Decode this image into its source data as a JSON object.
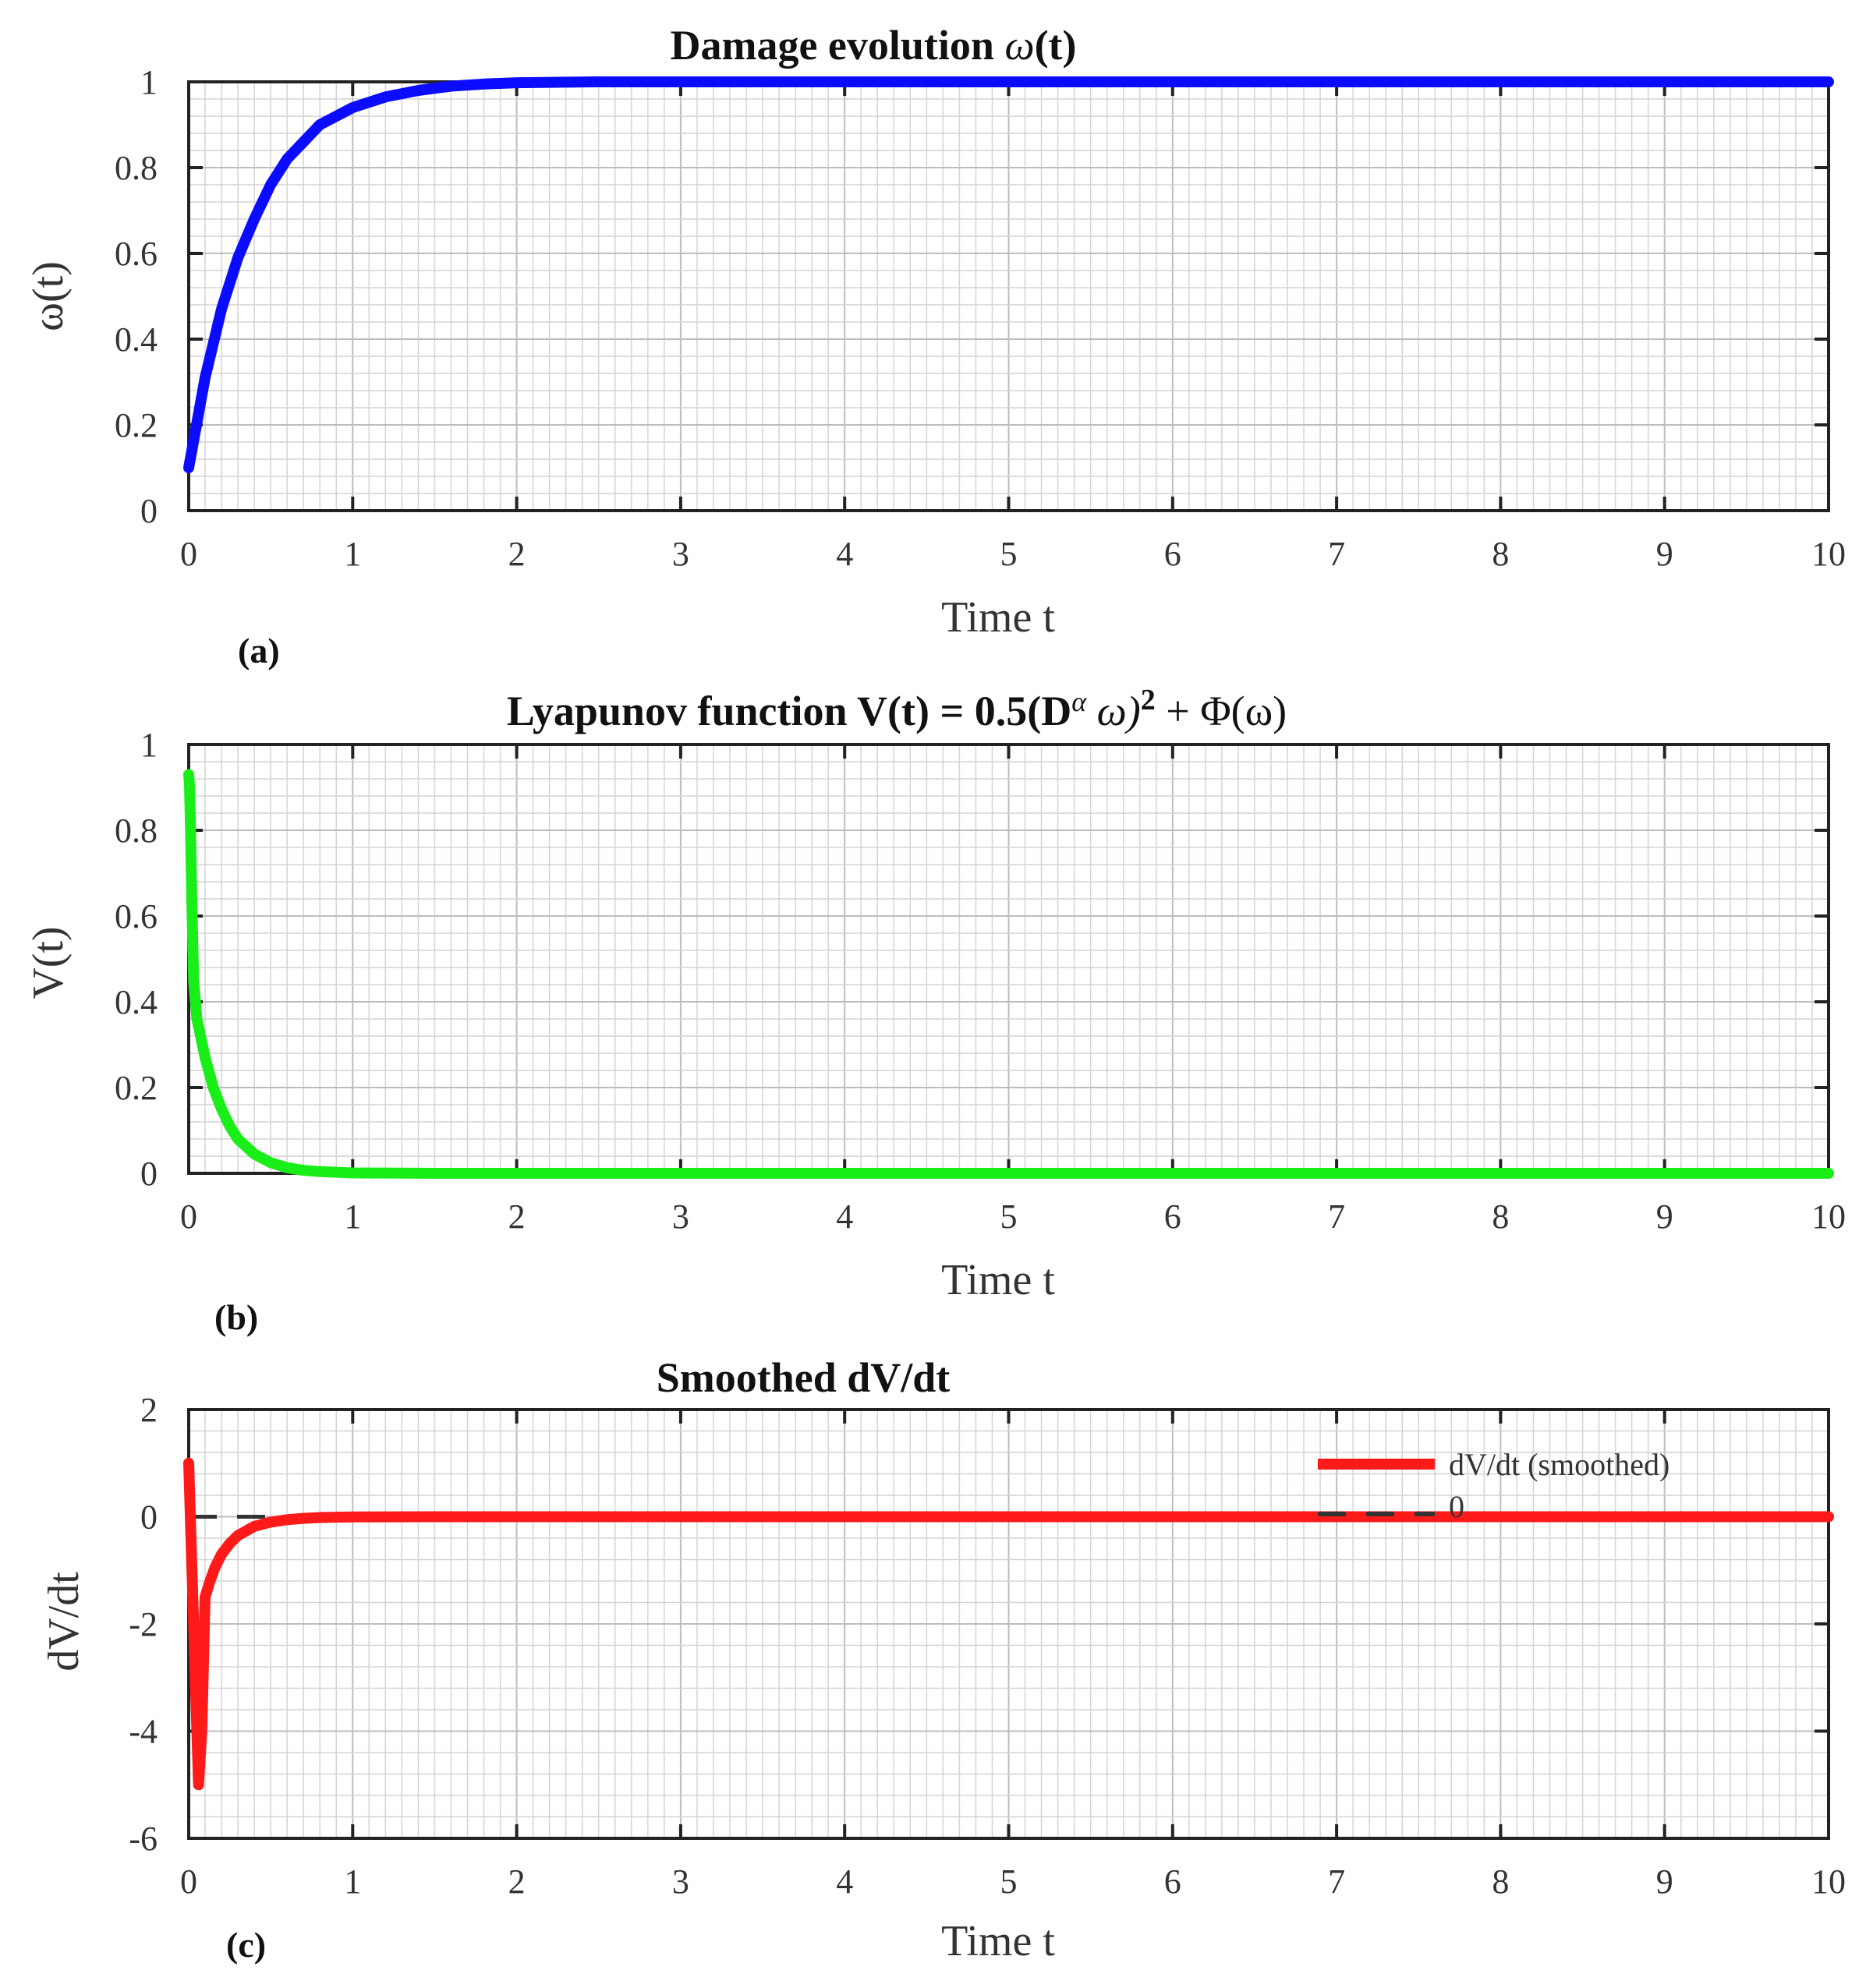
{
  "colors": {
    "series_omega": "#0b0bff",
    "series_V": "#19ee19",
    "series_dVdt": "#ff1a1a",
    "zero_line": "#333333",
    "grid_minor": "#d4d4d4",
    "grid_major": "#bdbdbd",
    "axes": "#222222"
  },
  "panels": [
    {
      "id": "a",
      "panel_label": "(a)",
      "title_text": "Damage evolution ",
      "title_symbol": "ω",
      "title_suffix": "(t)",
      "xlabel": "Time t",
      "ylabel": "ω(t)",
      "xticks": [
        "0",
        "1",
        "2",
        "3",
        "4",
        "5",
        "6",
        "7",
        "8",
        "9",
        "10"
      ],
      "yticks": [
        "0",
        "0.2",
        "0.4",
        "0.6",
        "0.8",
        "1"
      ]
    },
    {
      "id": "b",
      "panel_label": "(b)",
      "title_text": "Lyapunov function V(t) = 0.5(D",
      "title_sup_alpha": "α",
      "title_mid": " ω)",
      "title_sup_2": "2",
      "title_end": " + Φ(ω)",
      "xlabel": "Time t",
      "ylabel": "V(t)",
      "xticks": [
        "0",
        "1",
        "2",
        "3",
        "4",
        "5",
        "6",
        "7",
        "8",
        "9",
        "10"
      ],
      "yticks": [
        "0",
        "0.2",
        "0.4",
        "0.6",
        "0.8",
        "1"
      ]
    },
    {
      "id": "c",
      "panel_label": "(c)",
      "title_text": "Smoothed dV/dt",
      "xlabel": "Time t",
      "ylabel": "dV/dt",
      "xticks": [
        "0",
        "1",
        "2",
        "3",
        "4",
        "5",
        "6",
        "7",
        "8",
        "9",
        "10"
      ],
      "yticks": [
        "-6",
        "-4",
        "-2",
        "0",
        "2"
      ],
      "legend": [
        {
          "label": "dV/dt (smoothed)",
          "style": "solid"
        },
        {
          "label": "0",
          "style": "dashed"
        }
      ]
    }
  ],
  "chart_data": [
    {
      "type": "line",
      "title": "Damage evolution ω(t)",
      "xlabel": "Time t",
      "ylabel": "ω(t)",
      "xlim": [
        0,
        10
      ],
      "ylim": [
        0,
        1
      ],
      "grid": "on",
      "series": [
        {
          "x": [
            0,
            0.1,
            0.2,
            0.3,
            0.4,
            0.5,
            0.6,
            0.7,
            0.8,
            0.9,
            1.0,
            1.2,
            1.4,
            1.6,
            1.8,
            2.0,
            2.5,
            3.0,
            4.0,
            5.0,
            6.0,
            7.0,
            8.0,
            9.0,
            10.0
          ],
          "values": [
            0.1,
            0.31,
            0.47,
            0.59,
            0.68,
            0.76,
            0.82,
            0.86,
            0.9,
            0.92,
            0.94,
            0.965,
            0.98,
            0.99,
            0.995,
            0.998,
            1.0,
            1.0,
            1.0,
            1.0,
            1.0,
            1.0,
            1.0,
            1.0,
            1.0
          ]
        }
      ]
    },
    {
      "type": "line",
      "title": "Lyapunov function V(t) = 0.5(Dα ω)2 + Φ(ω)",
      "xlabel": "Time t",
      "ylabel": "V(t)",
      "xlim": [
        0,
        10
      ],
      "ylim": [
        0,
        1
      ],
      "grid": "on",
      "series": [
        {
          "x": [
            0.0,
            0.005,
            0.01,
            0.02,
            0.03,
            0.05,
            0.1,
            0.15,
            0.2,
            0.25,
            0.3,
            0.4,
            0.5,
            0.6,
            0.7,
            0.8,
            1.0,
            1.5,
            2.0,
            3.0,
            4.0,
            5.0,
            6.0,
            7.0,
            8.0,
            9.0,
            10.0
          ],
          "values": [
            0.93,
            0.9,
            0.82,
            0.62,
            0.45,
            0.36,
            0.27,
            0.2,
            0.15,
            0.11,
            0.08,
            0.045,
            0.025,
            0.013,
            0.007,
            0.004,
            0.001,
            0.0,
            0.0,
            0.0,
            0.0,
            0.0,
            0.0,
            0.0,
            0.0,
            0.0,
            0.0
          ]
        }
      ]
    },
    {
      "type": "line",
      "title": "Smoothed dV/dt",
      "xlabel": "Time t",
      "ylabel": "dV/dt",
      "xlim": [
        0,
        10
      ],
      "ylim": [
        -6,
        2
      ],
      "grid": "on",
      "legend": "top-right",
      "series": [
        {
          "name": "dV/dt (smoothed)",
          "x": [
            0.0,
            0.03,
            0.06,
            0.08,
            0.1,
            0.13,
            0.16,
            0.2,
            0.25,
            0.3,
            0.4,
            0.5,
            0.6,
            0.7,
            0.8,
            1.0,
            1.5,
            2.0,
            3.0,
            4.0,
            5.0,
            6.0,
            7.0,
            8.0,
            9.0,
            10.0
          ],
          "values": [
            1.0,
            -2.0,
            -5.0,
            -4.0,
            -1.5,
            -1.2,
            -0.95,
            -0.7,
            -0.5,
            -0.35,
            -0.18,
            -0.1,
            -0.055,
            -0.03,
            -0.015,
            -0.005,
            0.0,
            0.0,
            0.0,
            0.0,
            0.0,
            0.0,
            0.0,
            0.0,
            0.0,
            0.0
          ]
        },
        {
          "name": "0",
          "x": [
            0,
            10
          ],
          "values": [
            0,
            0
          ]
        }
      ]
    }
  ]
}
